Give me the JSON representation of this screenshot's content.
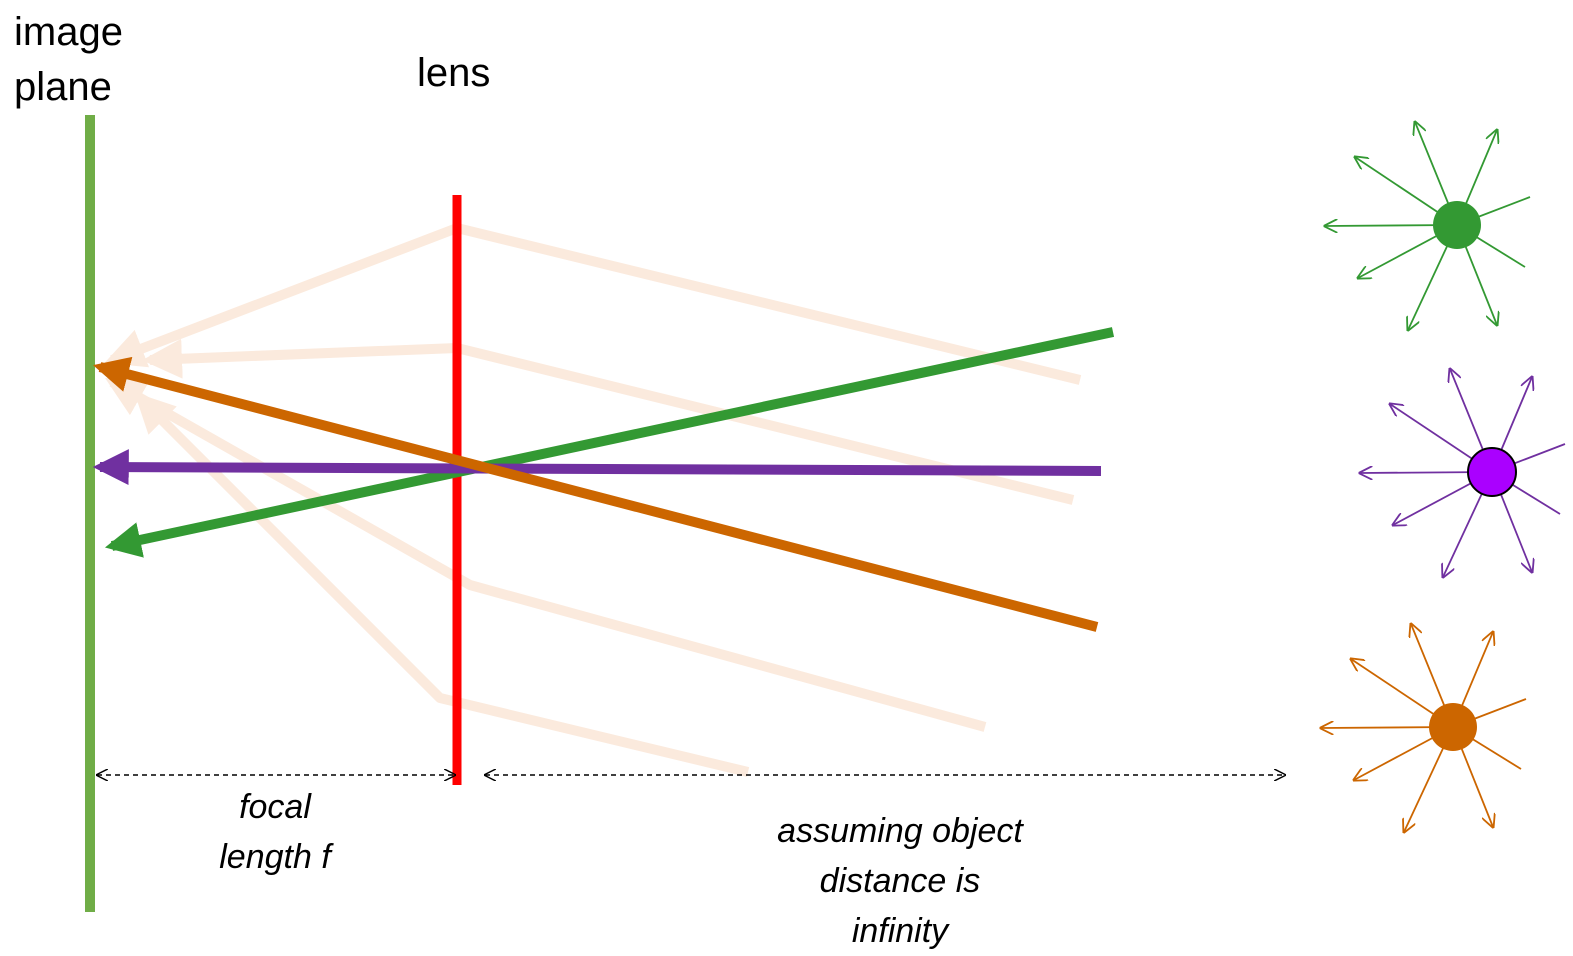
{
  "labels": {
    "image_plane": [
      "image",
      "plane"
    ],
    "lens": "lens",
    "focal_length": [
      "focal",
      "length f"
    ],
    "object_distance": [
      "assuming object",
      "distance is",
      "infinity"
    ]
  }
}
